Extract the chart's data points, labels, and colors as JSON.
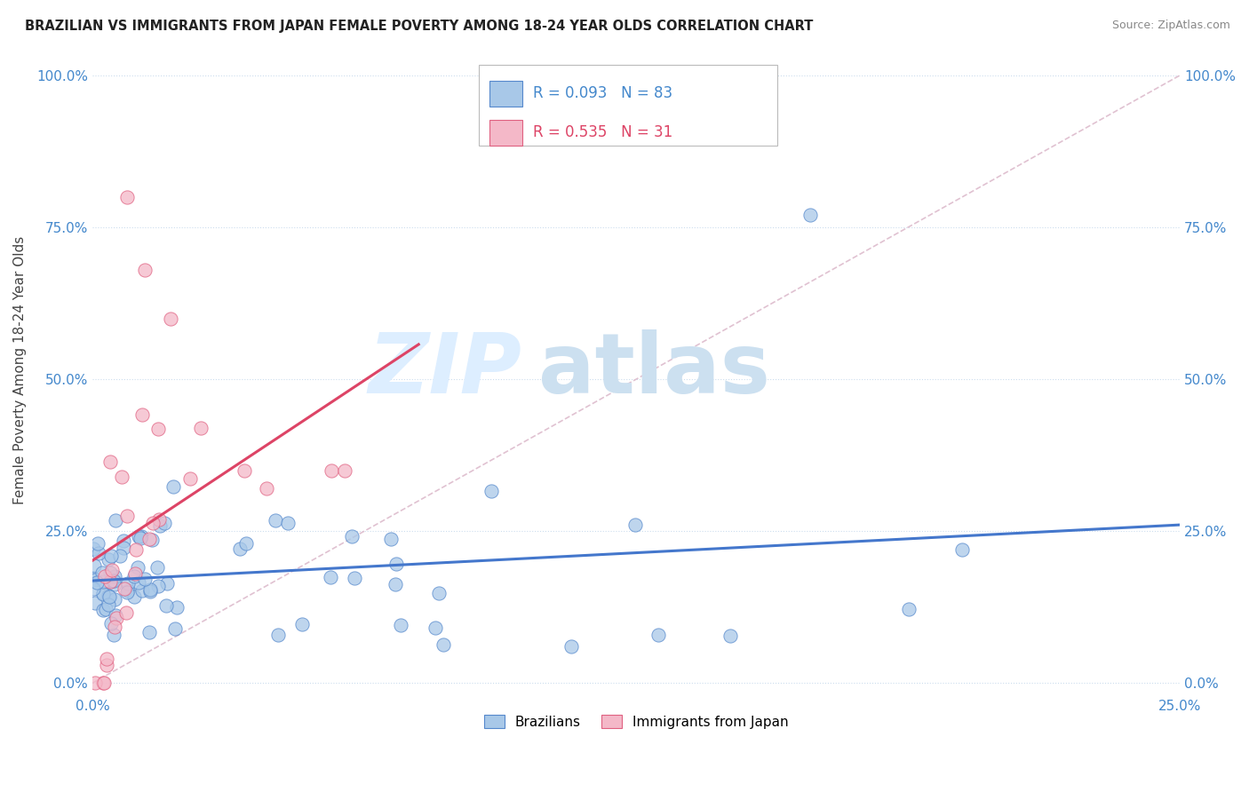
{
  "title": "BRAZILIAN VS IMMIGRANTS FROM JAPAN FEMALE POVERTY AMONG 18-24 YEAR OLDS CORRELATION CHART",
  "source": "Source: ZipAtlas.com",
  "ylabel": "Female Poverty Among 18-24 Year Olds",
  "xlim": [
    0.0,
    0.25
  ],
  "ylim": [
    -0.02,
    1.05
  ],
  "brazil_R": 0.093,
  "brazil_N": 83,
  "japan_R": 0.535,
  "japan_N": 31,
  "brazil_color": "#a8c8e8",
  "japan_color": "#f4b8c8",
  "brazil_edge": "#5588cc",
  "japan_edge": "#e06080",
  "brazil_line_color": "#4477cc",
  "japan_line_color": "#dd4466",
  "diagonal_color": "#ddbbcc",
  "legend_brazil_label": "Brazilians",
  "legend_japan_label": "Immigrants from Japan"
}
